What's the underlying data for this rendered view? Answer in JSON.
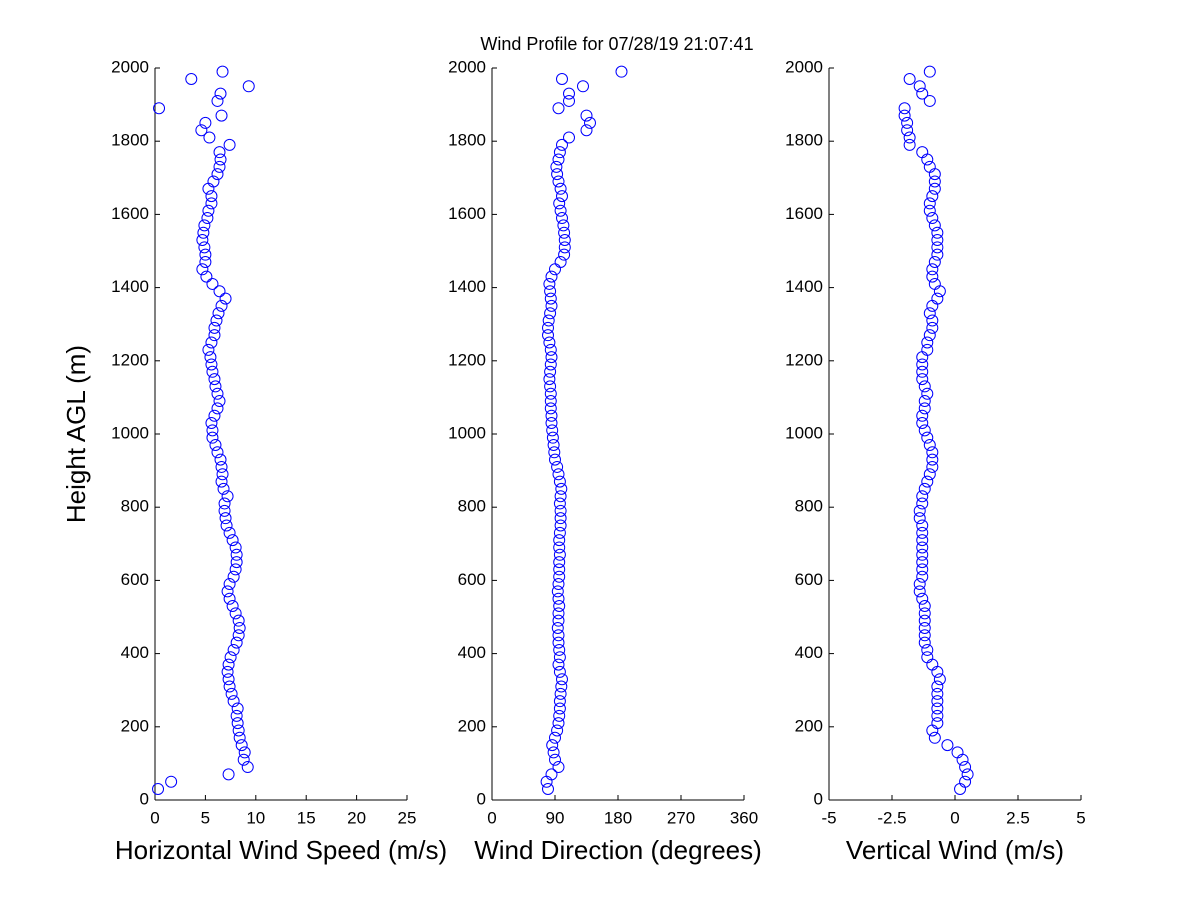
{
  "chart_data": [
    {
      "type": "scatter",
      "title": "Wind Profile for  07/28/19 21:07:41",
      "xlabel": "Horizontal Wind Speed (m/s)",
      "ylabel": "Height AGL (m)",
      "color": "#0000ff",
      "xlim": [
        0,
        25
      ],
      "xticks": [
        0,
        5,
        10,
        15,
        20,
        25
      ],
      "ylim": [
        0,
        2000
      ],
      "yticks": [
        0,
        200,
        400,
        600,
        800,
        1000,
        1200,
        1400,
        1600,
        1800,
        2000
      ],
      "x": [
        0.3,
        1.6,
        7.3,
        9.2,
        8.8,
        8.9,
        8.6,
        8.4,
        8.3,
        8.2,
        8.1,
        8.2,
        7.8,
        7.6,
        7.4,
        7.3,
        7.2,
        7.3,
        7.5,
        7.8,
        8.1,
        8.3,
        8.4,
        8.3,
        8.0,
        7.7,
        7.4,
        7.2,
        7.4,
        7.8,
        8.0,
        8.1,
        8.1,
        8.0,
        7.7,
        7.4,
        7.1,
        7.0,
        6.9,
        6.9,
        7.2,
        6.8,
        6.6,
        6.7,
        6.6,
        6.5,
        6.2,
        6.0,
        5.7,
        5.7,
        5.6,
        5.9,
        6.2,
        6.4,
        6.2,
        6.0,
        5.9,
        5.7,
        5.6,
        5.5,
        5.3,
        5.6,
        5.9,
        5.9,
        6.1,
        6.3,
        6.6,
        7.0,
        6.4,
        5.7,
        5.1,
        4.7,
        5.0,
        5.0,
        4.9,
        4.7,
        4.8,
        4.9,
        5.2,
        5.3,
        5.6,
        5.6,
        5.3,
        5.8,
        6.2,
        6.4,
        6.5,
        6.4,
        7.4,
        5.4,
        4.6,
        5.0,
        6.6,
        0.4,
        6.2,
        6.5,
        9.3,
        3.6,
        6.7
      ],
      "y": [
        30,
        50,
        70,
        90,
        110,
        130,
        150,
        170,
        190,
        210,
        230,
        250,
        270,
        290,
        310,
        330,
        350,
        370,
        390,
        410,
        430,
        450,
        470,
        490,
        510,
        530,
        550,
        570,
        590,
        610,
        630,
        650,
        670,
        690,
        710,
        730,
        750,
        770,
        790,
        810,
        830,
        850,
        870,
        890,
        910,
        930,
        950,
        970,
        990,
        1010,
        1030,
        1050,
        1070,
        1090,
        1110,
        1130,
        1150,
        1170,
        1190,
        1210,
        1230,
        1250,
        1270,
        1290,
        1310,
        1330,
        1350,
        1370,
        1390,
        1410,
        1430,
        1450,
        1470,
        1490,
        1510,
        1530,
        1550,
        1570,
        1590,
        1610,
        1630,
        1650,
        1670,
        1690,
        1710,
        1730,
        1750,
        1770,
        1790,
        1810,
        1830,
        1850,
        1870,
        1890,
        1910,
        1930,
        1950,
        1970,
        1990
      ]
    },
    {
      "type": "scatter",
      "xlabel": "Wind Direction (degrees)",
      "color": "#0000ff",
      "xlim": [
        0,
        360
      ],
      "xticks": [
        0,
        90,
        180,
        270,
        360
      ],
      "ylim": [
        0,
        2000
      ],
      "yticks": [
        0,
        200,
        400,
        600,
        800,
        1000,
        1200,
        1400,
        1600,
        1800,
        2000
      ],
      "x": [
        80,
        78,
        85,
        95,
        90,
        88,
        86,
        90,
        93,
        95,
        96,
        97,
        97,
        98,
        99,
        100,
        97,
        95,
        97,
        96,
        95,
        95,
        94,
        95,
        95,
        96,
        95,
        94,
        95,
        96,
        96,
        96,
        97,
        96,
        96,
        97,
        98,
        98,
        98,
        97,
        98,
        99,
        97,
        95,
        93,
        90,
        89,
        88,
        87,
        86,
        85,
        85,
        84,
        84,
        84,
        83,
        82,
        83,
        84,
        85,
        84,
        82,
        80,
        80,
        81,
        83,
        85,
        84,
        83,
        82,
        85,
        90,
        98,
        103,
        104,
        104,
        103,
        102,
        100,
        98,
        96,
        100,
        98,
        95,
        93,
        92,
        95,
        97,
        100,
        110,
        135,
        140,
        135,
        95,
        110,
        110,
        130,
        100,
        185
      ],
      "y": [
        30,
        50,
        70,
        90,
        110,
        130,
        150,
        170,
        190,
        210,
        230,
        250,
        270,
        290,
        310,
        330,
        350,
        370,
        390,
        410,
        430,
        450,
        470,
        490,
        510,
        530,
        550,
        570,
        590,
        610,
        630,
        650,
        670,
        690,
        710,
        730,
        750,
        770,
        790,
        810,
        830,
        850,
        870,
        890,
        910,
        930,
        950,
        970,
        990,
        1010,
        1030,
        1050,
        1070,
        1090,
        1110,
        1130,
        1150,
        1170,
        1190,
        1210,
        1230,
        1250,
        1270,
        1290,
        1310,
        1330,
        1350,
        1370,
        1390,
        1410,
        1430,
        1450,
        1470,
        1490,
        1510,
        1530,
        1550,
        1570,
        1590,
        1610,
        1630,
        1650,
        1670,
        1690,
        1710,
        1730,
        1750,
        1770,
        1790,
        1810,
        1830,
        1850,
        1870,
        1890,
        1910,
        1930,
        1950,
        1970,
        1990
      ]
    },
    {
      "type": "scatter",
      "xlabel": "Vertical Wind (m/s)",
      "color": "#0000ff",
      "xlim": [
        -5,
        5
      ],
      "xticks": [
        -5,
        -2.5,
        0,
        2.5,
        5
      ],
      "ylim": [
        0,
        2000
      ],
      "yticks": [
        0,
        200,
        400,
        600,
        800,
        1000,
        1200,
        1400,
        1600,
        1800,
        2000
      ],
      "x": [
        0.2,
        0.4,
        0.5,
        0.4,
        0.3,
        0.1,
        -0.3,
        -0.8,
        -0.9,
        -0.7,
        -0.7,
        -0.7,
        -0.7,
        -0.7,
        -0.7,
        -0.6,
        -0.7,
        -0.9,
        -1.1,
        -1.1,
        -1.2,
        -1.2,
        -1.2,
        -1.2,
        -1.2,
        -1.2,
        -1.3,
        -1.4,
        -1.4,
        -1.3,
        -1.3,
        -1.3,
        -1.3,
        -1.3,
        -1.3,
        -1.3,
        -1.3,
        -1.4,
        -1.4,
        -1.3,
        -1.3,
        -1.2,
        -1.1,
        -1.0,
        -0.9,
        -0.9,
        -0.9,
        -1.0,
        -1.1,
        -1.2,
        -1.3,
        -1.3,
        -1.2,
        -1.2,
        -1.1,
        -1.2,
        -1.3,
        -1.3,
        -1.3,
        -1.3,
        -1.1,
        -1.1,
        -1.0,
        -0.9,
        -0.9,
        -1.0,
        -0.9,
        -0.7,
        -0.6,
        -0.8,
        -0.9,
        -0.9,
        -0.8,
        -0.7,
        -0.7,
        -0.7,
        -0.7,
        -0.8,
        -0.9,
        -1.0,
        -1.0,
        -0.9,
        -0.8,
        -0.8,
        -0.8,
        -1.0,
        -1.1,
        -1.3,
        -1.8,
        -1.8,
        -1.9,
        -1.9,
        -2.0,
        -2.0,
        -1.0,
        -1.3,
        -1.4,
        -1.8,
        -1.0
      ],
      "y": [
        30,
        50,
        70,
        90,
        110,
        130,
        150,
        170,
        190,
        210,
        230,
        250,
        270,
        290,
        310,
        330,
        350,
        370,
        390,
        410,
        430,
        450,
        470,
        490,
        510,
        530,
        550,
        570,
        590,
        610,
        630,
        650,
        670,
        690,
        710,
        730,
        750,
        770,
        790,
        810,
        830,
        850,
        870,
        890,
        910,
        930,
        950,
        970,
        990,
        1010,
        1030,
        1050,
        1070,
        1090,
        1110,
        1130,
        1150,
        1170,
        1190,
        1210,
        1230,
        1250,
        1270,
        1290,
        1310,
        1330,
        1350,
        1370,
        1390,
        1410,
        1430,
        1450,
        1470,
        1490,
        1510,
        1530,
        1550,
        1570,
        1590,
        1610,
        1630,
        1650,
        1670,
        1690,
        1710,
        1730,
        1750,
        1770,
        1790,
        1810,
        1830,
        1850,
        1870,
        1890,
        1910,
        1930,
        1950,
        1970,
        1990
      ]
    }
  ]
}
